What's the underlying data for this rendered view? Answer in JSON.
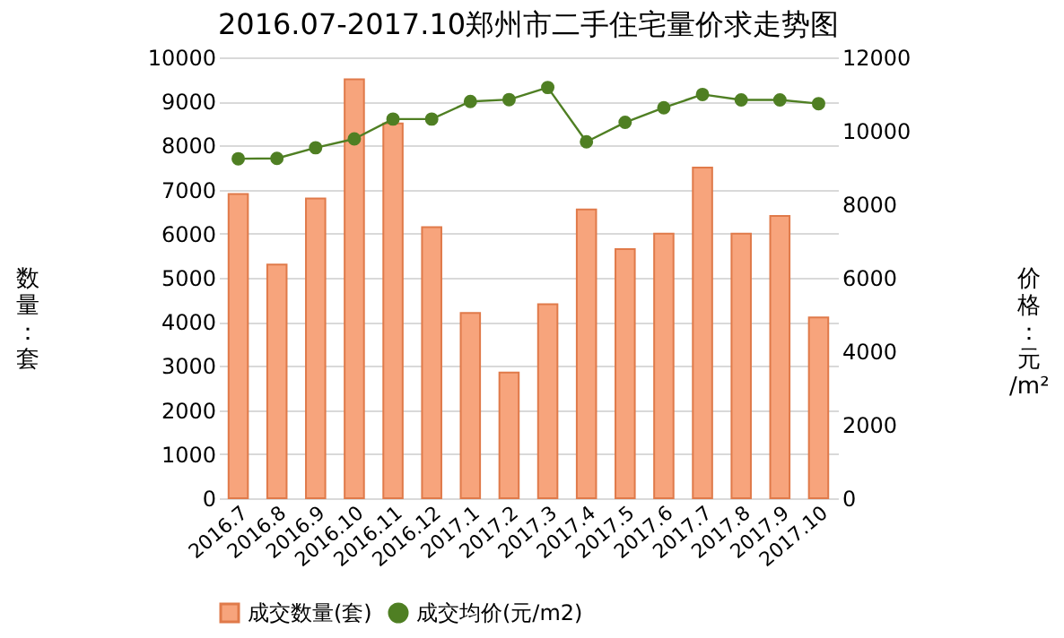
{
  "chart_data": {
    "type": "bar",
    "title": "2016.07-2017.10郑州市二手住宅量价求走势图",
    "categories": [
      "2016.7",
      "2016.8",
      "2016.9",
      "2016.10",
      "2016.11",
      "2016.12",
      "2017.1",
      "2017.2",
      "2017.3",
      "2017.4",
      "2017.5",
      "2017.6",
      "2017.7",
      "2017.8",
      "2017.9",
      "2017.10"
    ],
    "series": [
      {
        "name": "成交数量(套)",
        "color": "#f7a47c",
        "values": [
          6900,
          5300,
          6800,
          9500,
          8500,
          6150,
          4200,
          2850,
          4400,
          6550,
          5650,
          6000,
          7500,
          6000,
          6400,
          4100
        ]
      },
      {
        "name": "成交均价(元/m2)",
        "type": "line",
        "axis": "y2",
        "color": "#4f7f23",
        "marker": "circle",
        "values": [
          9240,
          9250,
          9540,
          9780,
          10320,
          10320,
          10800,
          10850,
          11180,
          9700,
          10230,
          10630,
          10990,
          10840,
          10840,
          10740
        ]
      }
    ],
    "ylabel": "数量：套",
    "y2label": "价格：元/m²",
    "ylim": [
      0,
      10000
    ],
    "yticks": [
      0,
      1000,
      2000,
      3000,
      4000,
      5000,
      6000,
      7000,
      8000,
      9000,
      10000
    ],
    "y2lim": [
      0,
      12000
    ],
    "y2ticks": [
      0,
      2000,
      4000,
      6000,
      8000,
      10000,
      12000
    ],
    "grid": "y",
    "legend": "bottom"
  }
}
